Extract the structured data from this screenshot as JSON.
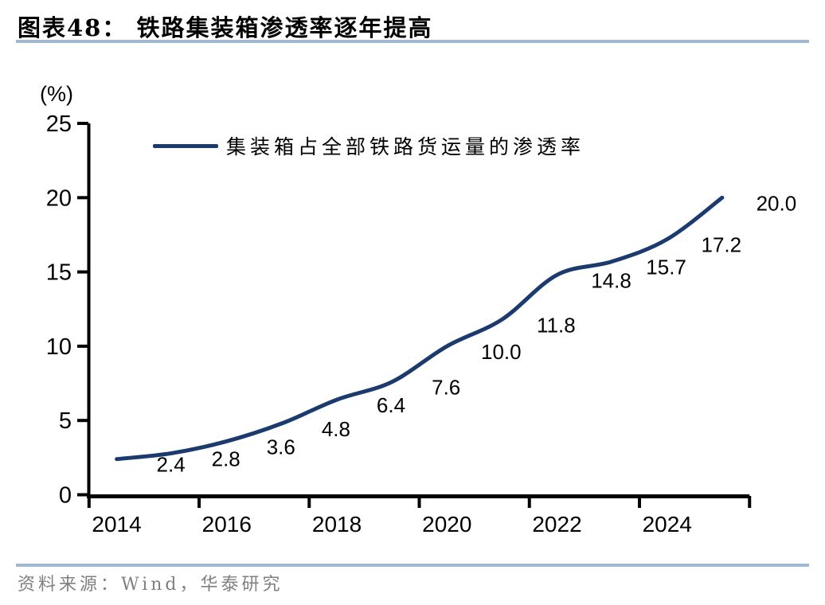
{
  "header": {
    "title": "图表48： 铁路集装箱渗透率逐年提高"
  },
  "footer": {
    "source": "资料来源：Wind，华泰研究"
  },
  "colors": {
    "line": "#1B3A6E",
    "axis": "#000000",
    "rule": "#A0B8D0",
    "source_text": "#808080",
    "label_text": "#000000"
  },
  "chart_data": {
    "type": "line",
    "title": "铁路集装箱渗透率逐年提高",
    "ylabel": "(%)",
    "legend": [
      "集装箱占全部铁路货运量的渗透率"
    ],
    "legend_position": "top-left-inside",
    "grid": false,
    "x": [
      2014,
      2015,
      2016,
      2017,
      2018,
      2019,
      2020,
      2021,
      2022,
      2023,
      2024,
      2025
    ],
    "series": [
      {
        "name": "集装箱占全部铁路货运量的渗透率",
        "values": [
          2.4,
          2.8,
          3.6,
          4.8,
          6.4,
          7.6,
          10.0,
          11.8,
          14.8,
          15.7,
          17.2,
          20.0
        ]
      }
    ],
    "data_labels": [
      "2.4",
      "2.8",
      "3.6",
      "4.8",
      "6.4",
      "7.6",
      "10.0",
      "11.8",
      "14.8",
      "15.7",
      "17.2",
      "20.0"
    ],
    "y_ticks": [
      0,
      5,
      10,
      15,
      20,
      25
    ],
    "ylim": [
      0,
      25
    ],
    "x_tick_labels": [
      "2014",
      "2016",
      "2018",
      "2020",
      "2022",
      "2024"
    ]
  }
}
